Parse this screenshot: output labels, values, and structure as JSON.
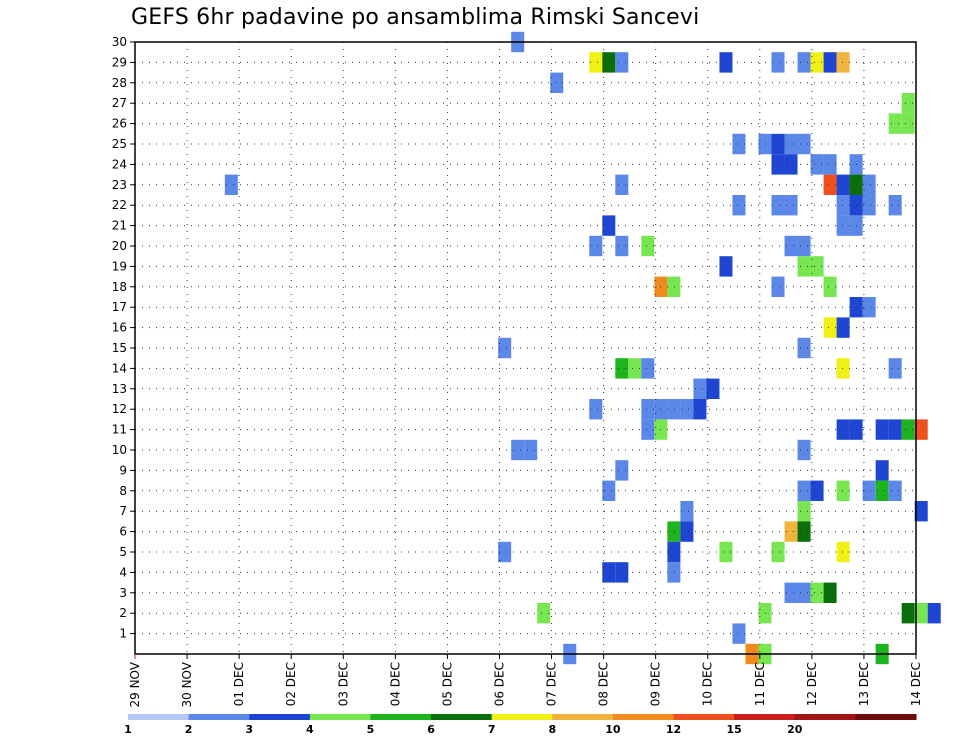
{
  "title": "GEFS 6hr padavine po ansamblima Rimski Sancevi",
  "chart_data": {
    "type": "heatmap",
    "title": "GEFS 6hr padavine po ansamblima Rimski Sancevi",
    "xlabel": "",
    "ylabel": "",
    "x_ticks": [
      "29 NOV",
      "30 NOV",
      "01 DEC",
      "02 DEC",
      "03 DEC",
      "04 DEC",
      "05 DEC",
      "06 DEC",
      "07 DEC",
      "08 DEC",
      "09 DEC",
      "10 DEC",
      "11 DEC",
      "12 DEC",
      "13 DEC",
      "14 DEC"
    ],
    "y_ticks": [
      1,
      2,
      3,
      4,
      5,
      6,
      7,
      8,
      9,
      10,
      11,
      12,
      13,
      14,
      15,
      16,
      17,
      18,
      19,
      20,
      21,
      22,
      23,
      24,
      25,
      26,
      27,
      28,
      29,
      30
    ],
    "xlim_days": [
      0,
      15
    ],
    "ylim": [
      0,
      30
    ],
    "grid": true,
    "colorbar": {
      "labels": [
        "1",
        "2",
        "3",
        "4",
        "5",
        "6",
        "7",
        "8",
        "10",
        "12",
        "15",
        "20"
      ],
      "colors": [
        "#b4c8f8",
        "#5a87e8",
        "#1e46d2",
        "#78e650",
        "#1eb41e",
        "#0a6e0a",
        "#f0f014",
        "#f0b43c",
        "#f08c1e",
        "#f0501e",
        "#c81e1e",
        "#a01414",
        "#6e0a0a"
      ]
    },
    "cells": [
      [
        7.35,
        30,
        1
      ],
      [
        8.85,
        29,
        6
      ],
      [
        9.1,
        29,
        5
      ],
      [
        9.35,
        29,
        1
      ],
      [
        11.35,
        29,
        2
      ],
      [
        12.35,
        29,
        1
      ],
      [
        12.85,
        29,
        1
      ],
      [
        13.1,
        29,
        6
      ],
      [
        13.35,
        29,
        2
      ],
      [
        13.6,
        29,
        7
      ],
      [
        8.1,
        28,
        1
      ],
      [
        14.85,
        27,
        3
      ],
      [
        14.6,
        26,
        3
      ],
      [
        14.85,
        26,
        3
      ],
      [
        11.6,
        25,
        1
      ],
      [
        12.1,
        25,
        1
      ],
      [
        12.35,
        25,
        2
      ],
      [
        12.6,
        25,
        1
      ],
      [
        12.85,
        25,
        1
      ],
      [
        12.35,
        24,
        2
      ],
      [
        12.6,
        24,
        2
      ],
      [
        13.1,
        24,
        1
      ],
      [
        13.35,
        24,
        1
      ],
      [
        13.85,
        24,
        1
      ],
      [
        1.85,
        23,
        1
      ],
      [
        9.35,
        23,
        1
      ],
      [
        13.35,
        23,
        9
      ],
      [
        13.6,
        23,
        2
      ],
      [
        13.85,
        23,
        5
      ],
      [
        14.1,
        23,
        1
      ],
      [
        11.6,
        22,
        1
      ],
      [
        12.35,
        22,
        1
      ],
      [
        12.6,
        22,
        1
      ],
      [
        13.6,
        22,
        1
      ],
      [
        13.85,
        22,
        2
      ],
      [
        14.1,
        22,
        1
      ],
      [
        14.6,
        22,
        1
      ],
      [
        9.1,
        21,
        2
      ],
      [
        13.6,
        21,
        1
      ],
      [
        13.85,
        21,
        1
      ],
      [
        8.85,
        20,
        1
      ],
      [
        9.35,
        20,
        1
      ],
      [
        9.85,
        20,
        3
      ],
      [
        12.6,
        20,
        1
      ],
      [
        12.85,
        20,
        1
      ],
      [
        11.35,
        19,
        2
      ],
      [
        12.85,
        19,
        3
      ],
      [
        13.1,
        19,
        3
      ],
      [
        10.1,
        18,
        8
      ],
      [
        10.35,
        18,
        3
      ],
      [
        12.35,
        18,
        1
      ],
      [
        13.35,
        18,
        3
      ],
      [
        13.85,
        17,
        2
      ],
      [
        14.1,
        17,
        1
      ],
      [
        13.35,
        16,
        6
      ],
      [
        13.6,
        16,
        2
      ],
      [
        7.1,
        15,
        1
      ],
      [
        12.85,
        15,
        1
      ],
      [
        9.35,
        14,
        4
      ],
      [
        9.6,
        14,
        3
      ],
      [
        9.85,
        14,
        1
      ],
      [
        13.6,
        14,
        6
      ],
      [
        14.6,
        14,
        1
      ],
      [
        10.85,
        13,
        1
      ],
      [
        11.1,
        13,
        2
      ],
      [
        8.85,
        12,
        1
      ],
      [
        9.85,
        12,
        1
      ],
      [
        10.1,
        12,
        1
      ],
      [
        10.35,
        12,
        1
      ],
      [
        10.6,
        12,
        1
      ],
      [
        10.85,
        12,
        2
      ],
      [
        9.85,
        11,
        1
      ],
      [
        10.1,
        11,
        3
      ],
      [
        13.6,
        11,
        2
      ],
      [
        13.85,
        11,
        2
      ],
      [
        14.35,
        11,
        2
      ],
      [
        14.6,
        11,
        2
      ],
      [
        14.85,
        11,
        4
      ],
      [
        15.1,
        11,
        9
      ],
      [
        7.35,
        10,
        1
      ],
      [
        7.6,
        10,
        1
      ],
      [
        12.85,
        10,
        1
      ],
      [
        9.35,
        9,
        1
      ],
      [
        14.35,
        9,
        2
      ],
      [
        9.1,
        8,
        1
      ],
      [
        12.85,
        8,
        1
      ],
      [
        13.1,
        8,
        2
      ],
      [
        13.6,
        8,
        3
      ],
      [
        14.1,
        8,
        1
      ],
      [
        14.35,
        8,
        4
      ],
      [
        14.6,
        8,
        1
      ],
      [
        10.6,
        7,
        1
      ],
      [
        12.85,
        7,
        3
      ],
      [
        15.1,
        7,
        2
      ],
      [
        10.35,
        6,
        4
      ],
      [
        10.6,
        6,
        2
      ],
      [
        12.6,
        6,
        7
      ],
      [
        12.85,
        6,
        5
      ],
      [
        7.1,
        5,
        1
      ],
      [
        10.35,
        5,
        2
      ],
      [
        11.35,
        5,
        3
      ],
      [
        12.35,
        5,
        3
      ],
      [
        13.6,
        5,
        6
      ],
      [
        9.1,
        4,
        2
      ],
      [
        9.35,
        4,
        2
      ],
      [
        10.35,
        4,
        1
      ],
      [
        12.6,
        3,
        1
      ],
      [
        12.85,
        3,
        1
      ],
      [
        13.1,
        3,
        3
      ],
      [
        13.35,
        3,
        5
      ],
      [
        7.85,
        2,
        3
      ],
      [
        12.1,
        2,
        3
      ],
      [
        14.85,
        2,
        5
      ],
      [
        15.1,
        2,
        3
      ],
      [
        15.35,
        2,
        2
      ],
      [
        11.6,
        1,
        1
      ],
      [
        8.35,
        0,
        1
      ],
      [
        11.85,
        0,
        8
      ],
      [
        12.1,
        0,
        3
      ],
      [
        14.35,
        0,
        4
      ]
    ]
  }
}
